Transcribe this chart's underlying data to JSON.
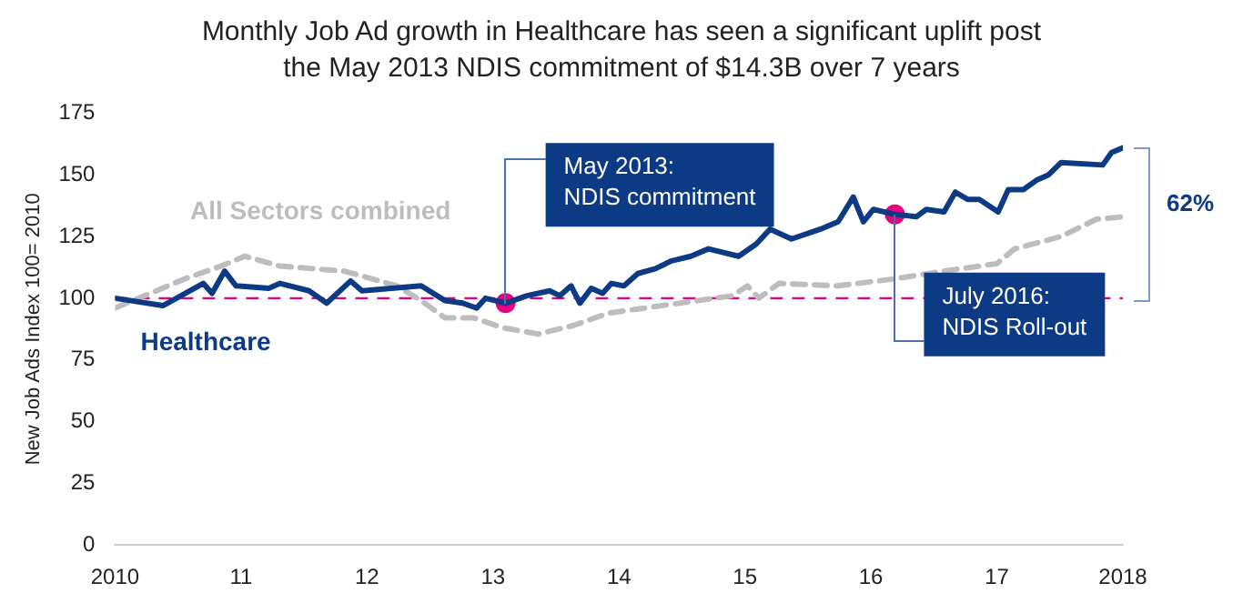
{
  "chart_data": {
    "type": "line",
    "title": "Monthly Job Ad growth in Healthcare has seen a significant uplift post the May 2013 NDIS commitment of $14.3B over 7 years",
    "ylabel": "New Job Ads Index 100= 2010",
    "series": [
      {
        "name": "Healthcare",
        "color": "#0d3a84",
        "line_style": "solid",
        "x": [
          2010,
          2010.38,
          2010.7,
          2010.77,
          2010.87,
          2010.96,
          2011.22,
          2011.31,
          2011.54,
          2011.68,
          2011.87,
          2011.96,
          2012.43,
          2012.62,
          2012.76,
          2012.87,
          2012.94,
          2013.1,
          2013.27,
          2013.45,
          2013.53,
          2013.62,
          2013.69,
          2013.78,
          2013.87,
          2013.94,
          2014.04,
          2014.15,
          2014.29,
          2014.41,
          2014.57,
          2014.71,
          2014.95,
          2015.09,
          2015.2,
          2015.37,
          2015.6,
          2015.74,
          2015.86,
          2015.94,
          2016.02,
          2016.19,
          2016.36,
          2016.44,
          2016.58,
          2016.67,
          2016.77,
          2016.86,
          2017.01,
          2017.09,
          2017.21,
          2017.32,
          2017.41,
          2017.51,
          2017.84,
          2017.91,
          2018
        ],
        "values": [
          100,
          97,
          106,
          102,
          111,
          105,
          104,
          106,
          103,
          98,
          107,
          103,
          105,
          99,
          98,
          96,
          100,
          98,
          101,
          103,
          101,
          105,
          98,
          104,
          102,
          106,
          105,
          110,
          112,
          115,
          117,
          120,
          117,
          122,
          128,
          124,
          128,
          131,
          141,
          131,
          136,
          134,
          133,
          136,
          135,
          143,
          140,
          140,
          135,
          144,
          144,
          148,
          150,
          155,
          154,
          159,
          161
        ]
      },
      {
        "name": "All Sectors combined",
        "color": "#bdbdbd",
        "line_style": "dashed",
        "x": [
          2010,
          2010.28,
          2010.56,
          2010.84,
          2011.03,
          2011.31,
          2011.82,
          2012.24,
          2012.43,
          2012.62,
          2012.85,
          2013.08,
          2013.36,
          2013.64,
          2013.92,
          2014.34,
          2014.9,
          2015.02,
          2015.11,
          2015.27,
          2015.74,
          2016.21,
          2016.58,
          2017,
          2017.14,
          2017.51,
          2017.79,
          2018
        ],
        "values": [
          96,
          102,
          108,
          113,
          117,
          113,
          111,
          105,
          99,
          92,
          92,
          88,
          85.5,
          89,
          94,
          97,
          101,
          105,
          100,
          106,
          105,
          108,
          111,
          114,
          120,
          125,
          132,
          133
        ]
      },
      {
        "type": "scatter",
        "color": "#e6007e",
        "marker": "circle",
        "x": [
          2013.1,
          2016.19
        ],
        "values": [
          98,
          134
        ]
      }
    ],
    "xlim": [
      2010,
      2018
    ],
    "xticks": [
      {
        "value": 2010,
        "label": "2010"
      },
      {
        "value": 2011,
        "label": "11"
      },
      {
        "value": 2012,
        "label": "12"
      },
      {
        "value": 2013,
        "label": "13"
      },
      {
        "value": 2014,
        "label": "14"
      },
      {
        "value": 2015,
        "label": "15"
      },
      {
        "value": 2016,
        "label": "16"
      },
      {
        "value": 2017,
        "label": "17"
      },
      {
        "value": 2018,
        "label": "2018"
      }
    ],
    "ylim": [
      0,
      175
    ],
    "yticks": [
      0,
      25,
      50,
      75,
      100,
      125,
      150,
      175
    ],
    "grid": false,
    "legend": false,
    "marker": "none",
    "ref_lines": [
      {
        "axis": "y",
        "value": 100,
        "color": "#e6007e",
        "line_style": "dashed"
      }
    ],
    "annotations": [
      "May 2013:\nNDIS commitment",
      "July 2016:\nNDIS Roll-out",
      "62%"
    ]
  }
}
